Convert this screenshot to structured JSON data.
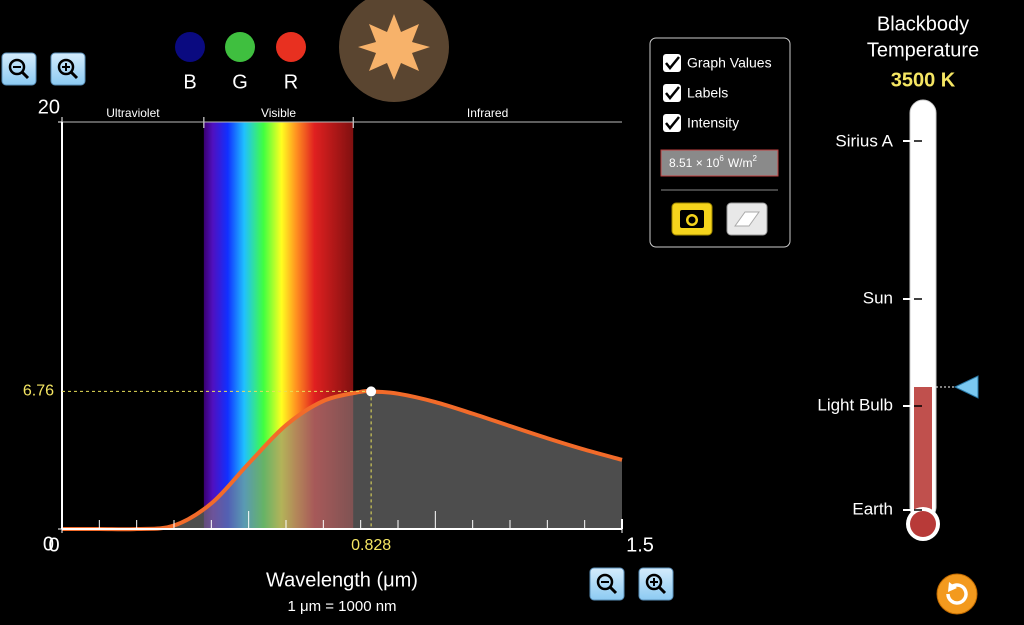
{
  "color_sensors": [
    "B",
    "G",
    "R"
  ],
  "chart_data": {
    "type": "line",
    "x": [
      0,
      0.1,
      0.2,
      0.3,
      0.4,
      0.5,
      0.6,
      0.7,
      0.8,
      0.828,
      0.9,
      1.0,
      1.1,
      1.2,
      1.3,
      1.4,
      1.5
    ],
    "series": [
      {
        "color": "#f26b2a",
        "values": [
          0,
          0,
          0,
          0.17,
          1.26,
          3.22,
          5.1,
          6.29,
          6.74,
          6.76,
          6.65,
          6.24,
          5.67,
          5.06,
          4.46,
          3.9,
          3.4
        ]
      }
    ],
    "xlim": [
      0,
      1.5
    ],
    "ylim": [
      0,
      20
    ],
    "xticks": [
      0,
      1.5
    ],
    "yticks": [
      0,
      20
    ],
    "xminorticks": [
      0.1,
      0.2,
      0.3,
      0.4,
      0.5,
      0.6,
      0.7,
      0.8,
      0.9,
      1.0,
      1.1,
      1.2,
      1.3,
      1.4
    ],
    "xlabel": "Wavelength (μm)",
    "xsublabel": "1 μm  =  1000 nm",
    "bands": [
      {
        "label": "Ultraviolet",
        "range": [
          0,
          0.38
        ]
      },
      {
        "label": "Visible",
        "range": [
          0.38,
          0.78
        ]
      },
      {
        "label": "Infrared",
        "range": [
          0.78,
          1.5
        ]
      }
    ],
    "peak": {
      "x": 0.828,
      "y": 6.76
    }
  },
  "options": {
    "items": [
      "Graph Values",
      "Labels",
      "Intensity"
    ],
    "intensity": [
      "8.51 × 10",
      "6",
      "W/m",
      "2"
    ]
  },
  "thermometer": {
    "title_lines": [
      "Blackbody",
      "Temperature"
    ],
    "temperature": "3500 K",
    "markers": [
      "Sirius A",
      "Sun",
      "Light Bulb",
      "Earth"
    ]
  }
}
